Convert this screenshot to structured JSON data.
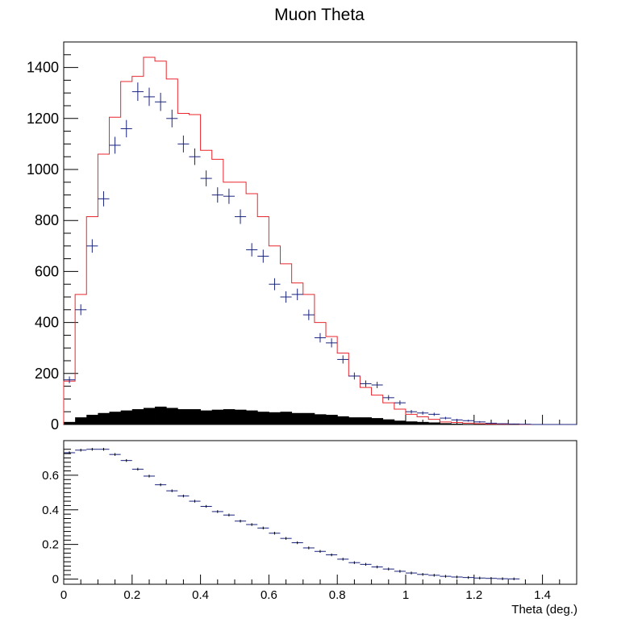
{
  "chart_data": [
    {
      "type": "histogram",
      "title": "Muon Theta",
      "xlabel": "",
      "ylabel": "",
      "xlim": [
        0,
        1.5
      ],
      "ylim": [
        0,
        1500
      ],
      "yticks": [
        "0",
        "200",
        "400",
        "600",
        "800",
        "1000",
        "1200",
        "1400"
      ],
      "bin_width": 0.03333,
      "series": [
        {
          "style": "step",
          "color": "#e8262d",
          "values": [
            170,
            510,
            815,
            1060,
            1205,
            1345,
            1365,
            1440,
            1425,
            1355,
            1220,
            1215,
            1075,
            1040,
            950,
            950,
            905,
            815,
            700,
            630,
            555,
            510,
            400,
            345,
            280,
            190,
            145,
            115,
            85,
            60,
            40,
            30,
            20,
            10,
            8,
            5,
            3,
            2,
            1,
            1,
            0,
            0,
            0,
            0,
            0
          ]
        },
        {
          "style": "error-points",
          "color": "#1a237e",
          "values": [
            175,
            450,
            700,
            885,
            1095,
            1160,
            1305,
            1285,
            1265,
            1200,
            1100,
            1050,
            965,
            900,
            895,
            815,
            685,
            660,
            550,
            500,
            510,
            430,
            340,
            320,
            255,
            190,
            160,
            155,
            105,
            85,
            50,
            45,
            40,
            25,
            18,
            15,
            10,
            5,
            3,
            2,
            1,
            0,
            0,
            0,
            0
          ]
        },
        {
          "style": "filled",
          "color": "#000000",
          "values": [
            10,
            28,
            38,
            45,
            50,
            55,
            60,
            65,
            70,
            65,
            60,
            60,
            55,
            58,
            60,
            58,
            55,
            50,
            48,
            50,
            45,
            45,
            40,
            38,
            32,
            28,
            28,
            25,
            20,
            15,
            12,
            10,
            8,
            5,
            3,
            2,
            2,
            1,
            1,
            0,
            0,
            0,
            0,
            0,
            0
          ]
        }
      ]
    },
    {
      "type": "scatter",
      "title": "",
      "xlabel": "Theta (deg.)",
      "ylabel": "",
      "xlim": [
        0,
        1.5
      ],
      "ylim": [
        -0.03,
        0.8
      ],
      "xticks": [
        "0",
        "0.2",
        "0.4",
        "0.6",
        "0.8",
        "1",
        "1.2",
        "1.4"
      ],
      "yticks": [
        "0",
        "0.2",
        "0.4",
        "0.6"
      ],
      "bin_width": 0.03333,
      "series": [
        {
          "style": "error-points",
          "color": "#1a237e",
          "values": [
            0.73,
            0.745,
            0.75,
            0.75,
            0.72,
            0.685,
            0.635,
            0.595,
            0.545,
            0.51,
            0.48,
            0.45,
            0.42,
            0.39,
            0.37,
            0.335,
            0.315,
            0.295,
            0.265,
            0.235,
            0.21,
            0.18,
            0.16,
            0.14,
            0.115,
            0.095,
            0.085,
            0.07,
            0.058,
            0.045,
            0.035,
            0.027,
            0.022,
            0.016,
            0.012,
            0.009,
            0.006,
            0.004,
            0.002,
            0.001
          ]
        }
      ]
    }
  ]
}
